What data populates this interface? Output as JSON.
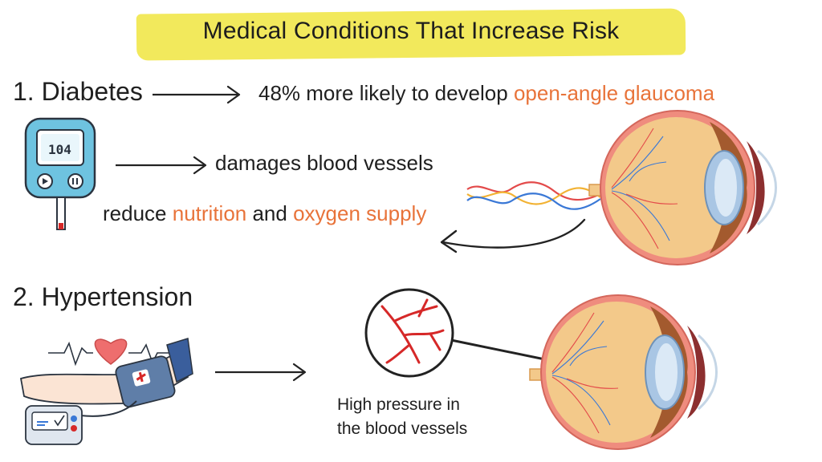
{
  "title": "Medical Conditions That Increase Risk",
  "section1": {
    "heading": "1. Diabetes",
    "likely_prefix": "48% more likely to develop",
    "likely_condition": "open-angle glaucoma",
    "meter_reading": "104",
    "damage_text": "damages blood vessels",
    "reduce_prefix": "reduce",
    "reduce_nutrition": "nutrition",
    "reduce_and": "and",
    "reduce_oxygen": "oxygen supply"
  },
  "section2": {
    "heading": "2. Hypertension",
    "pressure_line1": "High pressure in",
    "pressure_line2": "the blood vessels"
  },
  "colors": {
    "banner": "#f2e95c",
    "accent": "#e8733a",
    "meter": "#6ec3e0",
    "vessel_red": "#d62828",
    "eye_body": "#f3c98a",
    "eye_muscle": "#a35a2e"
  }
}
